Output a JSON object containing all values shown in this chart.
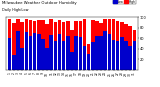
{
  "title": "Milwaukee Weather Outdoor Humidity",
  "subtitle": "Daily High/Low",
  "high_values": [
    97,
    90,
    97,
    91,
    96,
    95,
    94,
    95,
    95,
    88,
    96,
    91,
    95,
    91,
    93,
    76,
    94,
    94,
    96,
    50,
    95,
    94,
    90,
    97,
    97,
    96,
    93,
    91,
    88,
    84,
    76
  ],
  "low_values": [
    60,
    28,
    73,
    41,
    72,
    64,
    71,
    69,
    58,
    42,
    66,
    55,
    68,
    54,
    65,
    34,
    65,
    63,
    46,
    30,
    52,
    65,
    65,
    74,
    68,
    57,
    55,
    63,
    55,
    45,
    55
  ],
  "high_color": "#ff0000",
  "low_color": "#0000cc",
  "bg_color": "#ffffff",
  "ylim": [
    0,
    100
  ],
  "yticks": [
    20,
    40,
    60,
    80,
    100
  ],
  "bar_width": 0.42,
  "legend_high": "High",
  "legend_low": "Low"
}
